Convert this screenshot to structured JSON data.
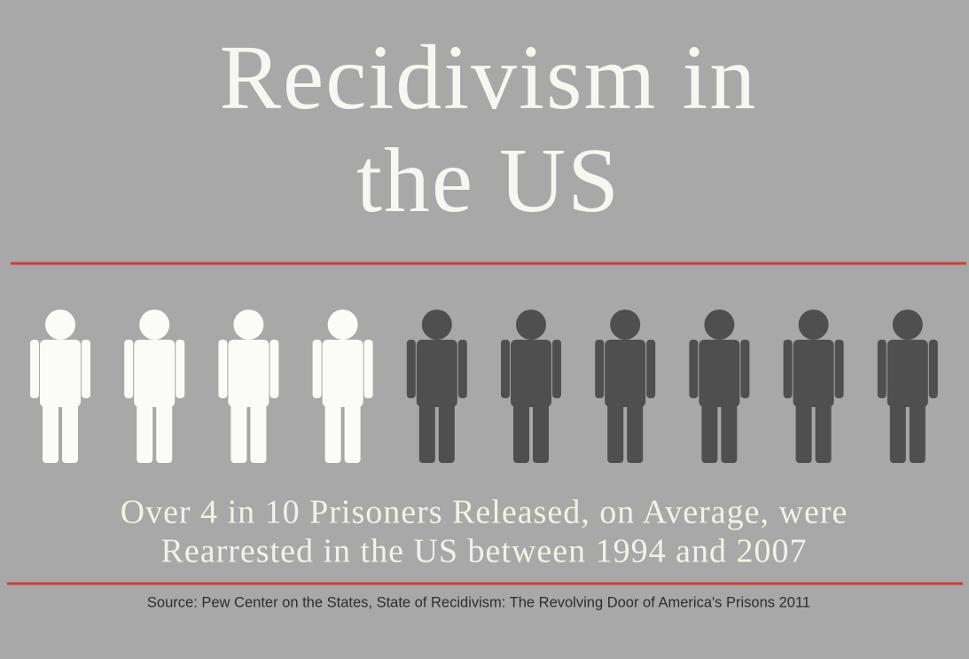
{
  "title": [
    "Recidivism in",
    "the US"
  ],
  "pictograph": {
    "highlighted": 4,
    "total": 10,
    "highlight_color": "#fbfbf8",
    "base_color": "#4f4f4f"
  },
  "caption": [
    "Over 4 in 10 Prisoners Released, on Average, were",
    "Rearrested in the US between 1994 and 2007"
  ],
  "source": "Source: Pew Center on the States, State of Recidivism: The Revolving Door of America's Prisons 2011"
}
